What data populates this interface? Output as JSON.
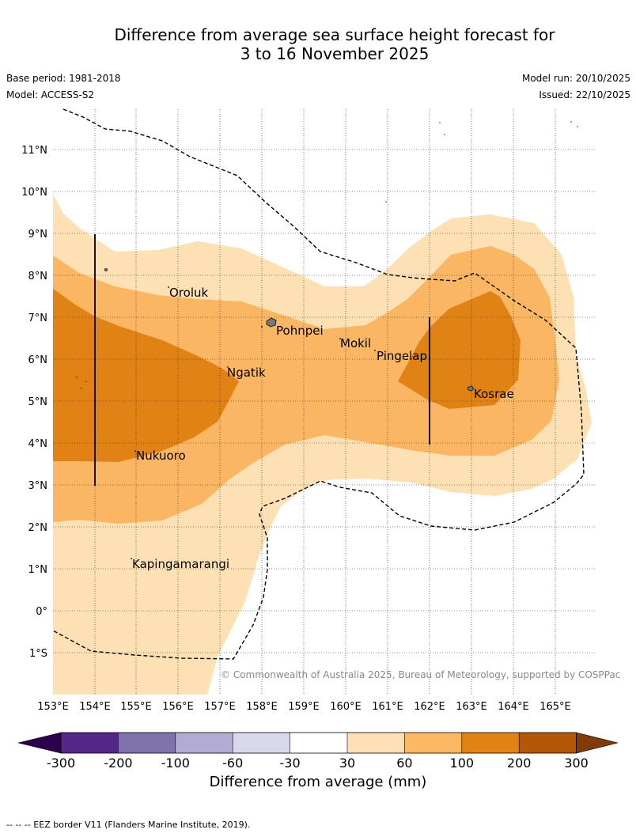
{
  "title": {
    "line1": "Difference from average sea surface height forecast for",
    "line2": "3 to 16 November 2025"
  },
  "meta": {
    "base_period": "Base period: 1981-2018",
    "model": "Model: ACCESS-S2",
    "model_run": "Model run: 20/10/2025",
    "issued": "Issued: 22/10/2025"
  },
  "map": {
    "lat_labels": [
      "11°N",
      "10°N",
      "9°N",
      "8°N",
      "7°N",
      "6°N",
      "5°N",
      "4°N",
      "3°N",
      "2°N",
      "1°N",
      "0°",
      "1°S"
    ],
    "lon_labels": [
      "153°E",
      "154°E",
      "155°E",
      "156°E",
      "157°E",
      "158°E",
      "159°E",
      "160°E",
      "161°E",
      "162°E",
      "163°E",
      "164°E",
      "165°E"
    ],
    "places": [
      "Oroluk",
      "Pohnpei",
      "Mokil",
      "Pingelap",
      "Ngatik",
      "Kosrae",
      "Nukuoro",
      "Kapingamarangi"
    ],
    "copyright": "© Commonwealth of Australia 2025, Bureau of Meteorology, supported by COSPPac",
    "colors": {
      "c30_60": "#fde0b3",
      "c60_100": "#fbb663",
      "c100_200": "#e08214",
      "c200_300": "#b35806"
    }
  },
  "colorbar": {
    "ticks": [
      "-300",
      "-200",
      "-100",
      "-60",
      "-30",
      "30",
      "60",
      "100",
      "200",
      "300"
    ],
    "colors": [
      "#2d004b",
      "#542788",
      "#8073ac",
      "#b2abd2",
      "#d8daeb",
      "#ffffff",
      "#fee0b6",
      "#fdb863",
      "#e08214",
      "#b35806",
      "#7f3b08"
    ],
    "label": "Difference from average (mm)"
  },
  "footnote": "--  --  -- EEZ border V11 (Flanders Marine Institute, 2019)."
}
